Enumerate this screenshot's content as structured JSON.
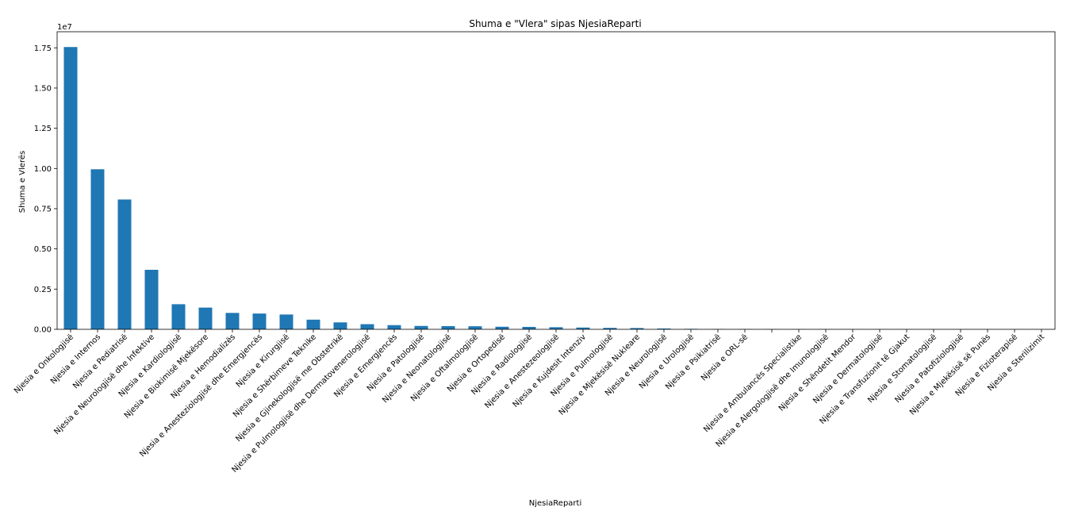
{
  "chart_data": {
    "type": "bar",
    "title": "Shuma e \"Vlera\" sipas NjesiaReparti",
    "xlabel": "NjesiaReparti",
    "ylabel": "Shuma e Vlerës",
    "offset_label": "1e7",
    "ylim": [
      0,
      18500000
    ],
    "yticks": [
      0,
      2500000,
      5000000,
      7500000,
      10000000,
      12500000,
      15000000,
      17500000
    ],
    "ytick_labels": [
      "0.00",
      "0.25",
      "0.50",
      "0.75",
      "1.00",
      "1.25",
      "1.50",
      "1.75"
    ],
    "bar_color": "#1f77b4",
    "grid": false,
    "categories": [
      "Njesia e Onkologjisë",
      "Njesia e Internos",
      "Njesia e Pediatrisë",
      "Njesia e Neurologjisë dhe Infektive",
      "Njesia e Kardiologjisë",
      "Njesia e Biokimisë Mjekësore",
      "Njesia e Hemodializës",
      "Njesia e Anesteziologjisë dhe Emergjencës",
      "Njesia e Kirurgjisë",
      "Njesia e Shërbimeve Teknike",
      "Njesia e Gjinekologjisë me Obstetrikë",
      "Njesia e Pulmologjisë dhe Dermatovenerologjisë",
      "Njesia e Emergjencës",
      "Njesia e Patologjisë",
      "Njesia e Neonatologjisë",
      "Njesia e Oftalmologjisë",
      "Njesia e Ortopedisë",
      "Njesia e Radiologjisë",
      "Njesia e Anestezeologjisë",
      "Njesia e Kujdesit Intenziv",
      "Njesia e Pulmologjisë",
      "Njesia e Mjekësisë Nukleare",
      "Njesia e Neurologjisë",
      "Njesia e Urologjisë",
      "Njesia e Psikiatrisë",
      "Njesia e ORL-së",
      "",
      "Njesia e Ambulancës Specialistike",
      "Njesia e Alergologjisë dhe Imunologjisë",
      "Njesia e Shëndetit Mendor",
      "Njesia e Dermatologjisë",
      "Njesia e Transfuzionit të Gjakut",
      "Njesia e Stomatologjisë",
      "Njesia e Patofiziologjisë",
      "Njesia e Mjekësisë së Punës",
      "Njesia e Fizioterapisë",
      "Njesia e Sterilizimit"
    ],
    "values": [
      17550000,
      9950000,
      8070000,
      3700000,
      1560000,
      1350000,
      1020000,
      980000,
      920000,
      600000,
      430000,
      320000,
      260000,
      210000,
      200000,
      190000,
      160000,
      150000,
      130000,
      110000,
      90000,
      80000,
      50000,
      30000,
      20000,
      15000,
      12000,
      10000,
      8000,
      6000,
      5000,
      4000,
      3000,
      2500,
      2000,
      1500,
      1000
    ]
  }
}
